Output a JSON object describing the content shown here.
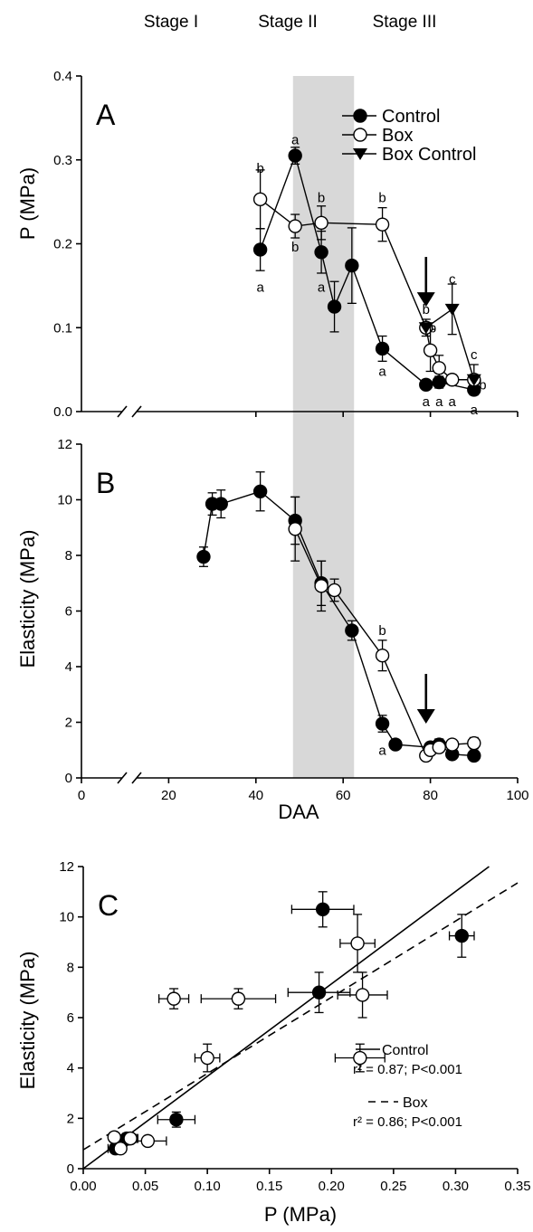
{
  "stages": [
    "Stage I",
    "Stage II",
    "Stage III"
  ],
  "stage2_span": [
    48.5,
    62.5
  ],
  "chart_data": [
    {
      "panel": "A",
      "type": "line",
      "xlabel": "",
      "ylabel": "P (MPa)",
      "xlim": [
        0,
        100
      ],
      "ylim": [
        0,
        0.4
      ],
      "yticks": [
        "0.0",
        "0.1",
        "0.2",
        "0.3",
        "0.4"
      ],
      "axis_break": true,
      "legend": {
        "position": "top-right",
        "entries": [
          "Control",
          "Box",
          "Box Control"
        ]
      },
      "series": [
        {
          "name": "Control",
          "marker": "filled-circle",
          "x": [
            41,
            49,
            55,
            58,
            62,
            69,
            79,
            82,
            90
          ],
          "y": [
            0.193,
            0.305,
            0.19,
            0.125,
            0.174,
            0.075,
            0.032,
            0.035,
            0.026
          ],
          "err": [
            0.025,
            0.01,
            0.025,
            0.03,
            0.045,
            0.015,
            0.005,
            0.007,
            0.006
          ]
        },
        {
          "name": "Box",
          "marker": "open-circle",
          "x": [
            41,
            49,
            55,
            69,
            79,
            80,
            82,
            85,
            90
          ],
          "y": [
            0.253,
            0.221,
            0.225,
            0.223,
            0.1,
            0.073,
            0.052,
            0.038,
            0.038
          ],
          "err": [
            0.035,
            0.014,
            0.02,
            0.02,
            0.01,
            0.025,
            0.015,
            0.006,
            0.005
          ]
        },
        {
          "name": "Box Control",
          "marker": "filled-triangle-down",
          "x": [
            79,
            85,
            90
          ],
          "y": [
            0.1,
            0.122,
            0.038
          ],
          "err": [
            0.0,
            0.03,
            0.018
          ]
        }
      ],
      "annotations": [
        {
          "text": "b",
          "x": 41,
          "y": 0.29
        },
        {
          "text": "a",
          "x": 41,
          "y": 0.148
        },
        {
          "text": "a",
          "x": 49,
          "y": 0.324
        },
        {
          "text": "b",
          "x": 49,
          "y": 0.196
        },
        {
          "text": "b",
          "x": 55,
          "y": 0.255
        },
        {
          "text": "a",
          "x": 55,
          "y": 0.148
        },
        {
          "text": "b",
          "x": 69,
          "y": 0.255
        },
        {
          "text": "a",
          "x": 69,
          "y": 0.048
        },
        {
          "text": "b",
          "x": 79,
          "y": 0.122
        },
        {
          "text": "b",
          "x": 80.5,
          "y": 0.1
        },
        {
          "text": "a",
          "x": 79,
          "y": 0.012
        },
        {
          "text": "a",
          "x": 82,
          "y": 0.012
        },
        {
          "text": "a",
          "x": 85,
          "y": 0.012
        },
        {
          "text": "c",
          "x": 85,
          "y": 0.158
        },
        {
          "text": "c",
          "x": 90,
          "y": 0.068
        },
        {
          "text": "b",
          "x": 92,
          "y": 0.032
        },
        {
          "text": "a",
          "x": 90,
          "y": 0.002
        }
      ],
      "arrow_x": 79
    },
    {
      "panel": "B",
      "type": "line",
      "xlabel": "DAA",
      "ylabel": "Elasticity (MPa)",
      "xlim": [
        0,
        100
      ],
      "ylim": [
        0,
        12
      ],
      "xticks": [
        "0",
        "20",
        "40",
        "60",
        "80",
        "100"
      ],
      "yticks": [
        "0",
        "2",
        "4",
        "6",
        "8",
        "10",
        "12"
      ],
      "axis_break": true,
      "series": [
        {
          "name": "Control",
          "marker": "filled-circle",
          "x": [
            28,
            30,
            32,
            41,
            49,
            55,
            62,
            69,
            72,
            80,
            82,
            85,
            90
          ],
          "y": [
            7.95,
            9.85,
            9.85,
            10.3,
            9.25,
            7.0,
            5.3,
            1.95,
            1.2,
            1.1,
            1.2,
            0.85,
            0.8
          ],
          "err": [
            0.35,
            0.4,
            0.5,
            0.7,
            0.85,
            0.8,
            0.35,
            0.3,
            0.1,
            0.15,
            0.2,
            0.1,
            0.1
          ]
        },
        {
          "name": "Box",
          "marker": "open-circle",
          "x": [
            49,
            55,
            58,
            69,
            79,
            80,
            82,
            85,
            90
          ],
          "y": [
            8.95,
            6.9,
            6.75,
            4.4,
            0.8,
            1.0,
            1.1,
            1.2,
            1.25
          ],
          "err": [
            1.15,
            0.9,
            0.4,
            0.55,
            0.15,
            0.15,
            0.15,
            0.1,
            0.2
          ]
        }
      ],
      "annotations": [
        {
          "text": "b",
          "x": 69,
          "y": 5.3
        },
        {
          "text": "a",
          "x": 69,
          "y": 1.0
        }
      ],
      "arrow_x": 79
    },
    {
      "panel": "C",
      "type": "scatter",
      "xlabel": "P (MPa)",
      "ylabel": "Elasticity (MPa)",
      "xlim": [
        0,
        0.35
      ],
      "ylim": [
        0,
        12
      ],
      "xticks": [
        "0.00",
        "0.05",
        "0.10",
        "0.15",
        "0.20",
        "0.25",
        "0.30",
        "0.35"
      ],
      "yticks": [
        "0",
        "2",
        "4",
        "6",
        "8",
        "10",
        "12"
      ],
      "series": [
        {
          "name": "Control",
          "marker": "filled-circle",
          "x": [
            0.193,
            0.305,
            0.19,
            0.075,
            0.032,
            0.035,
            0.026
          ],
          "y": [
            10.3,
            9.25,
            7.0,
            1.95,
            1.1,
            1.2,
            0.8
          ],
          "xerr": [
            0.025,
            0.01,
            0.025,
            0.015,
            0.005,
            0.007,
            0.006
          ],
          "yerr": [
            0.7,
            0.85,
            0.8,
            0.3,
            0.15,
            0.2,
            0.1
          ]
        },
        {
          "name": "Box",
          "marker": "open-circle",
          "x": [
            0.221,
            0.225,
            0.125,
            0.223,
            0.1,
            0.073,
            0.052,
            0.038,
            0.025,
            0.03,
            0.038
          ],
          "y": [
            8.95,
            6.9,
            6.75,
            4.4,
            4.4,
            6.75,
            1.1,
            1.2,
            1.25,
            0.8,
            1.2
          ],
          "xerr": [
            0.014,
            0.02,
            0.03,
            0.02,
            0.01,
            0.012,
            0.015,
            0.006,
            0.004,
            0.004,
            0.005
          ],
          "yerr": [
            1.15,
            0.9,
            0.4,
            0.55,
            0.55,
            0.4,
            0.15,
            0.1,
            0.2,
            0.15,
            0.1
          ]
        }
      ],
      "fits": [
        {
          "name": "Control",
          "style": "solid",
          "x": [
            0,
            0.327
          ],
          "y": [
            0,
            12
          ]
        },
        {
          "name": "Box",
          "style": "dashed",
          "x": [
            0,
            0.35
          ],
          "y": [
            0.75,
            11.35
          ]
        }
      ],
      "legend": {
        "position": "bottom-right",
        "entries": [
          {
            "label": "Control",
            "stat": "r² = 0.87; P<0.001"
          },
          {
            "label": "Box",
            "stat": "r² = 0.86; P<0.001"
          }
        ]
      }
    }
  ]
}
